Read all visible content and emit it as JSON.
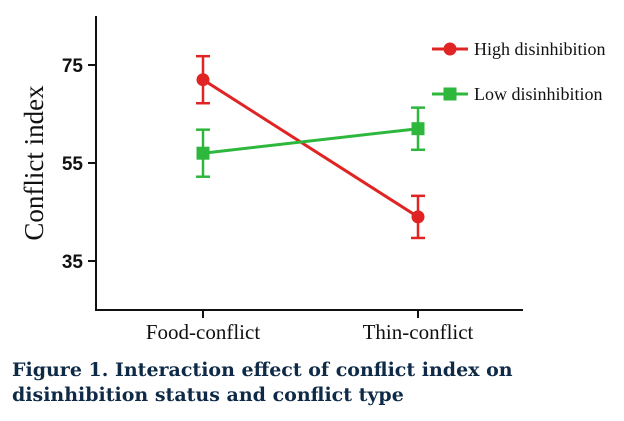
{
  "chart_data": {
    "type": "line",
    "categories": [
      "Food-conflict",
      "Thin-conflict"
    ],
    "ylabel": "Conflict index",
    "xlabel": "",
    "ylim": [
      25,
      85
    ],
    "yticks": [
      35,
      55,
      75
    ],
    "grid": false,
    "legend_position": "top-right",
    "series": [
      {
        "name": "High disinhibition",
        "color": "#e02424",
        "marker": "circle",
        "values": [
          72,
          44
        ],
        "error": [
          4.8,
          4.3
        ]
      },
      {
        "name": "Low disinhibition",
        "color": "#2db83d",
        "marker": "square",
        "values": [
          57,
          62
        ],
        "error": [
          4.8,
          4.3
        ]
      }
    ]
  },
  "caption": {
    "text": "Figure 1. Interaction effect of conflict index on disinhibition status and conflict type"
  }
}
